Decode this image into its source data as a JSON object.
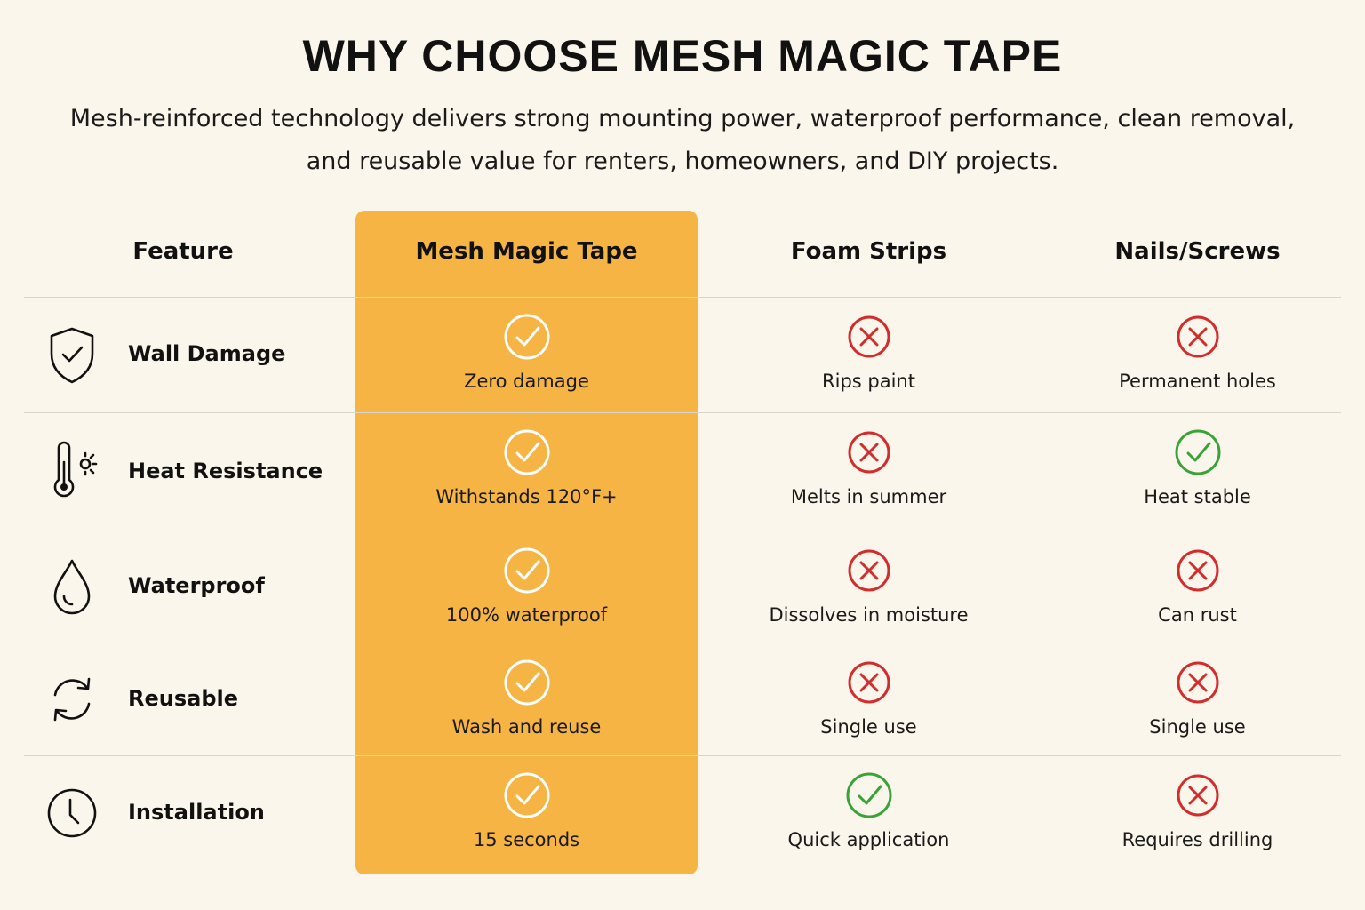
{
  "header": {
    "title": "WHY CHOOSE MESH MAGIC TAPE",
    "subtitle_line1": "Mesh-reinforced technology delivers strong mounting power, waterproof performance, clean removal,",
    "subtitle_line2": "and reusable value for renters, homeowners, and DIY projects."
  },
  "columns": {
    "feature": "Feature",
    "mesh": "Mesh Magic Tape",
    "foam": "Foam Strips",
    "nails": "Nails/Screws"
  },
  "colors": {
    "highlight": "#f6b444",
    "check_white": "#ffffff",
    "cross_red": "#d42b2b",
    "check_green": "#3aa336"
  },
  "rows": [
    {
      "feature": "Wall Damage",
      "icon": "shield-check-icon",
      "mesh": {
        "text": "Zero damage",
        "mark": "check"
      },
      "foam": {
        "text": "Rips paint",
        "mark": "cross"
      },
      "nails": {
        "text": "Permanent holes",
        "mark": "cross"
      }
    },
    {
      "feature": "Heat Resistance",
      "icon": "thermometer-sun-icon",
      "mesh": {
        "text": "Withstands 120°F+",
        "mark": "check"
      },
      "foam": {
        "text": "Melts in summer",
        "mark": "cross"
      },
      "nails": {
        "text": "Heat stable",
        "mark": "check"
      }
    },
    {
      "feature": "Waterproof",
      "icon": "water-drop-icon",
      "mesh": {
        "text": "100% waterproof",
        "mark": "check"
      },
      "foam": {
        "text": "Dissolves in moisture",
        "mark": "cross"
      },
      "nails": {
        "text": "Can rust",
        "mark": "cross"
      }
    },
    {
      "feature": "Reusable",
      "icon": "refresh-arrows-icon",
      "mesh": {
        "text": "Wash and reuse",
        "mark": "check"
      },
      "foam": {
        "text": "Single use",
        "mark": "cross"
      },
      "nails": {
        "text": "Single use",
        "mark": "cross"
      }
    },
    {
      "feature": "Installation",
      "icon": "clock-icon",
      "mesh": {
        "text": "15 seconds",
        "mark": "check"
      },
      "foam": {
        "text": "Quick application",
        "mark": "check"
      },
      "nails": {
        "text": "Requires drilling",
        "mark": "cross"
      }
    }
  ]
}
